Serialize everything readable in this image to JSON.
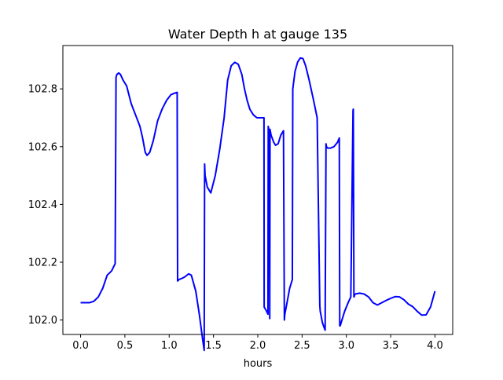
{
  "chart_data": {
    "type": "line",
    "title": "Water Depth h at gauge 135",
    "xlabel": "hours",
    "ylabel": "",
    "xlim": [
      -0.2,
      4.2
    ],
    "ylim": [
      101.95,
      102.95
    ],
    "grid": false,
    "xticks": [
      0.0,
      0.5,
      1.0,
      1.5,
      2.0,
      2.5,
      3.0,
      3.5,
      4.0
    ],
    "xtick_labels": [
      "0.0",
      "0.5",
      "1.0",
      "1.5",
      "2.0",
      "2.5",
      "3.0",
      "3.5",
      "4.0"
    ],
    "yticks": [
      102.0,
      102.2,
      102.4,
      102.6,
      102.8
    ],
    "ytick_labels": [
      "102.0",
      "102.2",
      "102.4",
      "102.6",
      "102.8"
    ],
    "series": [
      {
        "color": "#0000ff",
        "x": [
          0.0,
          0.05,
          0.1,
          0.15,
          0.2,
          0.25,
          0.3,
          0.35,
          0.39,
          0.4,
          0.41,
          0.43,
          0.45,
          0.48,
          0.52,
          0.57,
          0.62,
          0.67,
          0.7,
          0.73,
          0.75,
          0.78,
          0.82,
          0.87,
          0.92,
          0.97,
          1.02,
          1.06,
          1.09,
          1.095,
          1.11,
          1.15,
          1.18,
          1.22,
          1.25,
          1.3,
          1.34,
          1.37,
          1.395,
          1.4,
          1.405,
          1.43,
          1.47,
          1.52,
          1.57,
          1.62,
          1.66,
          1.7,
          1.74,
          1.78,
          1.82,
          1.85,
          1.88,
          1.91,
          1.95,
          1.99,
          2.03,
          2.07,
          2.072,
          2.1,
          2.115,
          2.118,
          2.13,
          2.135,
          2.138,
          2.15,
          2.18,
          2.2,
          2.23,
          2.26,
          2.29,
          2.3,
          2.305,
          2.33,
          2.36,
          2.39,
          2.395,
          2.42,
          2.45,
          2.48,
          2.51,
          2.54,
          2.58,
          2.63,
          2.67,
          2.7,
          2.705,
          2.73,
          2.76,
          2.77,
          2.775,
          2.79,
          2.82,
          2.86,
          2.9,
          2.92,
          2.925,
          2.93,
          2.95,
          2.98,
          3.02,
          3.05,
          3.075,
          3.078,
          3.085,
          3.088,
          3.09,
          3.1,
          3.15,
          3.2,
          3.25,
          3.3,
          3.35,
          3.4,
          3.45,
          3.5,
          3.55,
          3.6,
          3.65,
          3.7,
          3.75,
          3.8,
          3.85,
          3.9,
          3.95,
          4.0
        ],
        "y": [
          102.06,
          102.06,
          102.06,
          102.065,
          102.08,
          102.11,
          102.155,
          102.17,
          102.195,
          102.84,
          102.85,
          102.855,
          102.85,
          102.83,
          102.81,
          102.75,
          102.71,
          102.67,
          102.63,
          102.58,
          102.57,
          102.58,
          102.62,
          102.69,
          102.73,
          102.76,
          102.78,
          102.785,
          102.788,
          102.135,
          102.14,
          102.145,
          102.15,
          102.16,
          102.155,
          102.1,
          102.02,
          101.95,
          101.895,
          102.54,
          102.5,
          102.46,
          102.44,
          102.5,
          102.59,
          102.7,
          102.83,
          102.88,
          102.892,
          102.885,
          102.85,
          102.8,
          102.76,
          102.73,
          102.71,
          102.7,
          102.7,
          102.7,
          102.045,
          102.03,
          102.02,
          102.67,
          102.65,
          102.005,
          102.66,
          102.64,
          102.615,
          102.605,
          102.61,
          102.64,
          102.655,
          102.0,
          102.02,
          102.06,
          102.11,
          102.14,
          102.8,
          102.86,
          102.893,
          102.907,
          102.905,
          102.88,
          102.83,
          102.76,
          102.7,
          102.05,
          102.03,
          101.99,
          101.965,
          102.61,
          102.6,
          102.595,
          102.595,
          102.6,
          102.615,
          102.63,
          101.98,
          101.98,
          102.0,
          102.03,
          102.06,
          102.08,
          102.725,
          102.73,
          102.08,
          102.08,
          102.085,
          102.09,
          102.093,
          102.09,
          102.08,
          102.06,
          102.052,
          102.06,
          102.068,
          102.075,
          102.081,
          102.08,
          102.07,
          102.055,
          102.046,
          102.03,
          102.017,
          102.018,
          102.045,
          102.1
        ]
      }
    ]
  }
}
